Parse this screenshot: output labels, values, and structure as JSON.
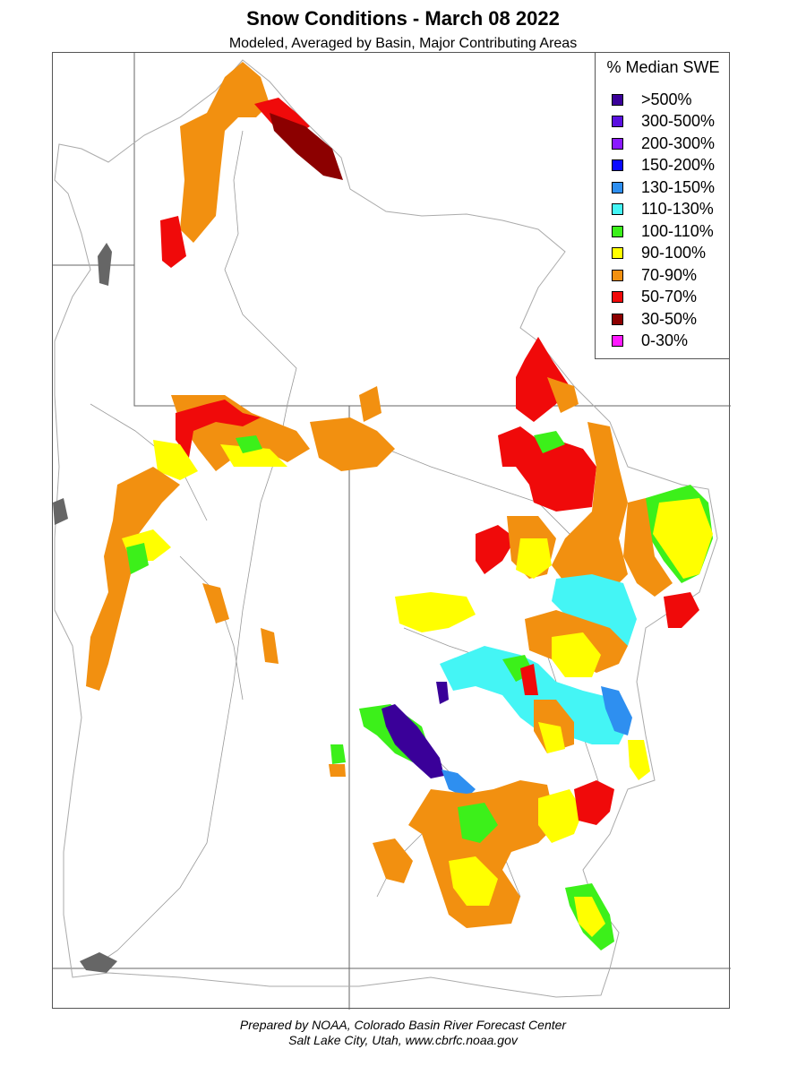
{
  "title": "Snow Conditions - March 08 2022",
  "subtitle": "Modeled, Averaged by Basin, Major Contributing Areas",
  "legend": {
    "title": "% Median SWE",
    "items": [
      {
        "label": ">500%",
        "color": "#3a0099"
      },
      {
        "label": "300-500%",
        "color": "#5a10e0"
      },
      {
        "label": "200-300%",
        "color": "#8a1aff"
      },
      {
        "label": "150-200%",
        "color": "#0a0aff"
      },
      {
        "label": "130-150%",
        "color": "#2e8ff0"
      },
      {
        "label": "110-130%",
        "color": "#44f5f5"
      },
      {
        "label": "100-110%",
        "color": "#3cf01a"
      },
      {
        "label": "90-100%",
        "color": "#ffff00"
      },
      {
        "label": "70-90%",
        "color": "#f29010"
      },
      {
        "label": "50-70%",
        "color": "#f00a0a"
      },
      {
        "label": "30-50%",
        "color": "#8c0000"
      },
      {
        "label": "0-30%",
        "color": "#ff1aff"
      }
    ]
  },
  "footer": {
    "line1": "Prepared by NOAA, Colorado Basin River Forecast Center",
    "line2": "Salt Lake City, Utah, www.cbrfc.noaa.gov"
  }
}
